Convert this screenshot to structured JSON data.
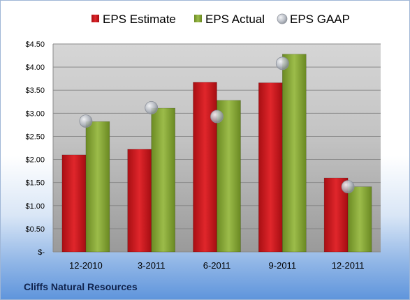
{
  "chart_data": {
    "type": "bar",
    "categories": [
      "12-2010",
      "3-2011",
      "6-2011",
      "9-2011",
      "12-2011"
    ],
    "series": [
      {
        "name": "EPS Estimate",
        "kind": "bar",
        "color": "#c0161b",
        "values": [
          2.1,
          2.22,
          3.67,
          3.66,
          1.6
        ]
      },
      {
        "name": "EPS Actual",
        "kind": "bar",
        "color": "#7e9d2f",
        "values": [
          2.82,
          3.11,
          3.28,
          4.28,
          1.41
        ]
      },
      {
        "name": "EPS GAAP",
        "kind": "marker",
        "color": "#b9bec7",
        "values": [
          2.83,
          3.12,
          2.93,
          4.08,
          1.41
        ]
      }
    ],
    "yticks": [
      "$-",
      "$0.50",
      "$1.00",
      "$1.50",
      "$2.00",
      "$2.50",
      "$3.00",
      "$3.50",
      "$4.00",
      "$4.50"
    ],
    "ylim": [
      0,
      4.5
    ],
    "ystep": 0.5,
    "grid": true,
    "legend_position": "top",
    "plot_background": "gradient gray"
  },
  "footer": {
    "company": "Cliffs Natural Resources"
  }
}
